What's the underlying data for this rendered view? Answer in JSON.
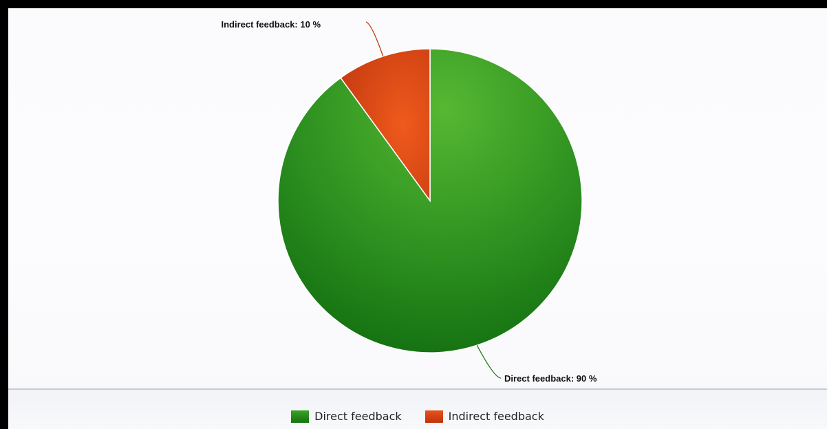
{
  "chart_data": {
    "type": "pie",
    "slices": [
      {
        "label": "Direct feedback",
        "value": 90,
        "data_label": "Direct feedback: 90 %",
        "color": "#2a8c1e"
      },
      {
        "label": "Indirect feedback",
        "value": 10,
        "data_label": "Indirect feedback: 10 %",
        "color": "#d4401a"
      }
    ],
    "legend": {
      "placement": "bottom",
      "items": [
        {
          "label": "Direct feedback",
          "color": "#2a8c1e"
        },
        {
          "label": "Indirect feedback",
          "color": "#d4401a"
        }
      ]
    }
  }
}
